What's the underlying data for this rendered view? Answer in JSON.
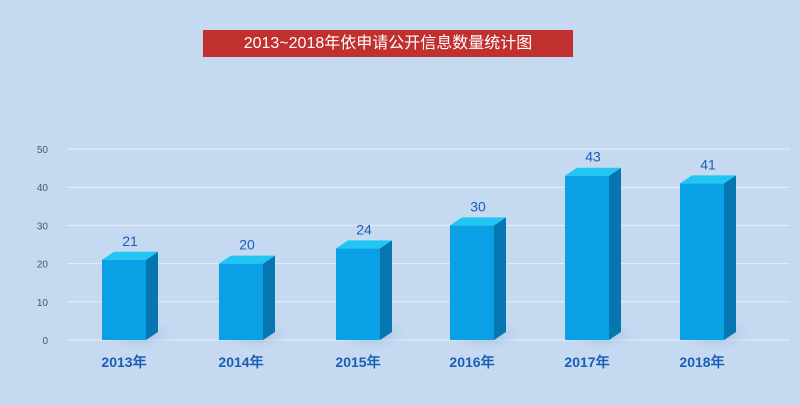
{
  "chart_data": {
    "type": "bar",
    "title": "2013~2018年依申请公开信息数量统计图",
    "categories": [
      "2013年",
      "2014年",
      "2015年",
      "2016年",
      "2017年",
      "2018年"
    ],
    "values": [
      21,
      20,
      24,
      30,
      43,
      41
    ],
    "xlabel": "",
    "ylabel": "",
    "ylim": [
      0,
      50
    ],
    "yticks": [
      "0",
      "10",
      "20",
      "30",
      "40",
      "50"
    ],
    "grid": true,
    "colors": {
      "front": "#0aa0e6",
      "side": "#0676b0",
      "top": "#22c6f5",
      "label": "#1a5fb4",
      "title_bg": "#c0302e"
    }
  }
}
